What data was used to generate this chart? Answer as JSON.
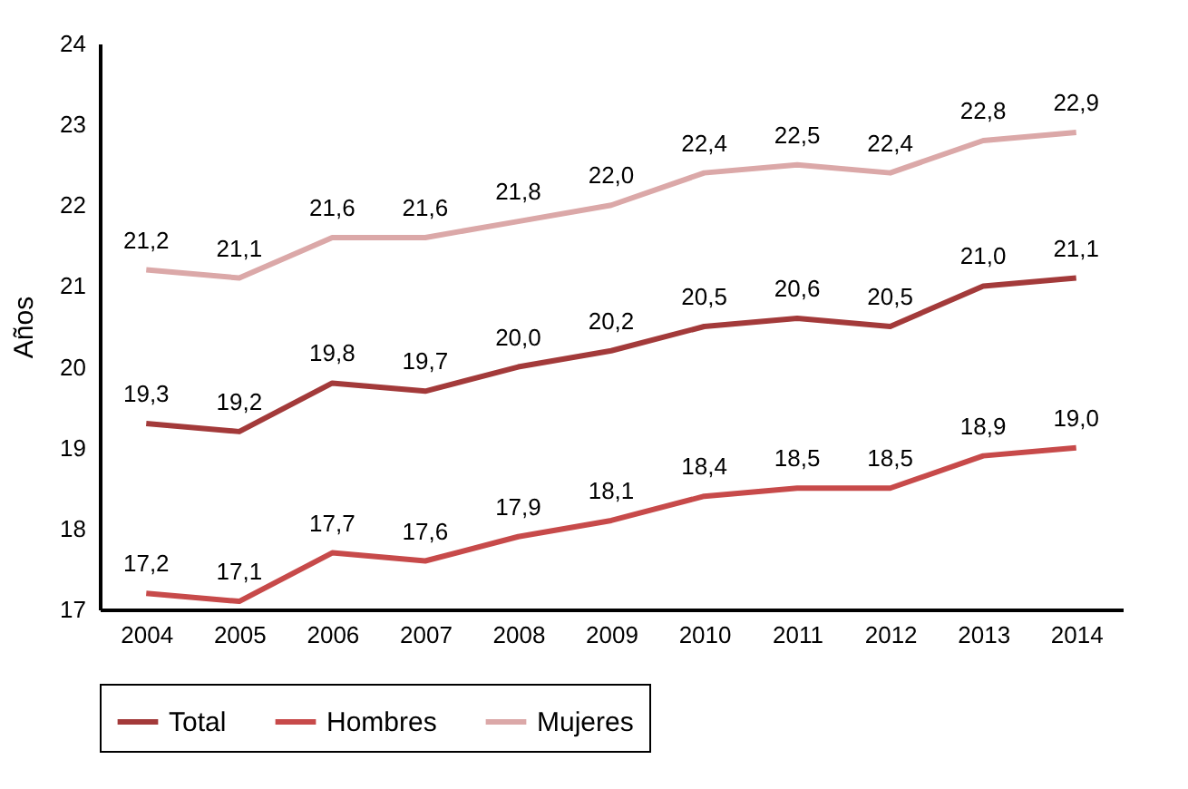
{
  "chart_data": {
    "type": "line",
    "ylabel": "Años",
    "categories": [
      "2004",
      "2005",
      "2006",
      "2007",
      "2008",
      "2009",
      "2010",
      "2011",
      "2012",
      "2013",
      "2014"
    ],
    "series": [
      {
        "name": "Total",
        "color": "#a33a3a",
        "values": [
          19.3,
          19.2,
          19.8,
          19.7,
          20.0,
          20.2,
          20.5,
          20.6,
          20.5,
          21.0,
          21.1
        ],
        "value_labels": [
          "19,3",
          "19,2",
          "19,8",
          "19,7",
          "20,0",
          "20,2",
          "20,5",
          "20,6",
          "20,5",
          "21,0",
          "21,1"
        ]
      },
      {
        "name": "Hombres",
        "color": "#c74a4a",
        "values": [
          17.2,
          17.1,
          17.7,
          17.6,
          17.9,
          18.1,
          18.4,
          18.5,
          18.5,
          18.9,
          19.0
        ],
        "value_labels": [
          "17,2",
          "17,1",
          "17,7",
          "17,6",
          "17,9",
          "18,1",
          "18,4",
          "18,5",
          "18,5",
          "18,9",
          "19,0"
        ]
      },
      {
        "name": "Mujeres",
        "color": "#dba8a8",
        "values": [
          21.2,
          21.1,
          21.6,
          21.6,
          21.8,
          22.0,
          22.4,
          22.5,
          22.4,
          22.8,
          22.9
        ],
        "value_labels": [
          "21,2",
          "21,1",
          "21,6",
          "21,6",
          "21,8",
          "22,0",
          "22,4",
          "22,5",
          "22,4",
          "22,8",
          "22,9"
        ]
      }
    ],
    "ylim": [
      17,
      24
    ],
    "yticks": [
      17,
      18,
      19,
      20,
      21,
      22,
      23,
      24
    ],
    "grid": false,
    "legend": "bottom",
    "marker": "none",
    "line_style": "solid"
  }
}
